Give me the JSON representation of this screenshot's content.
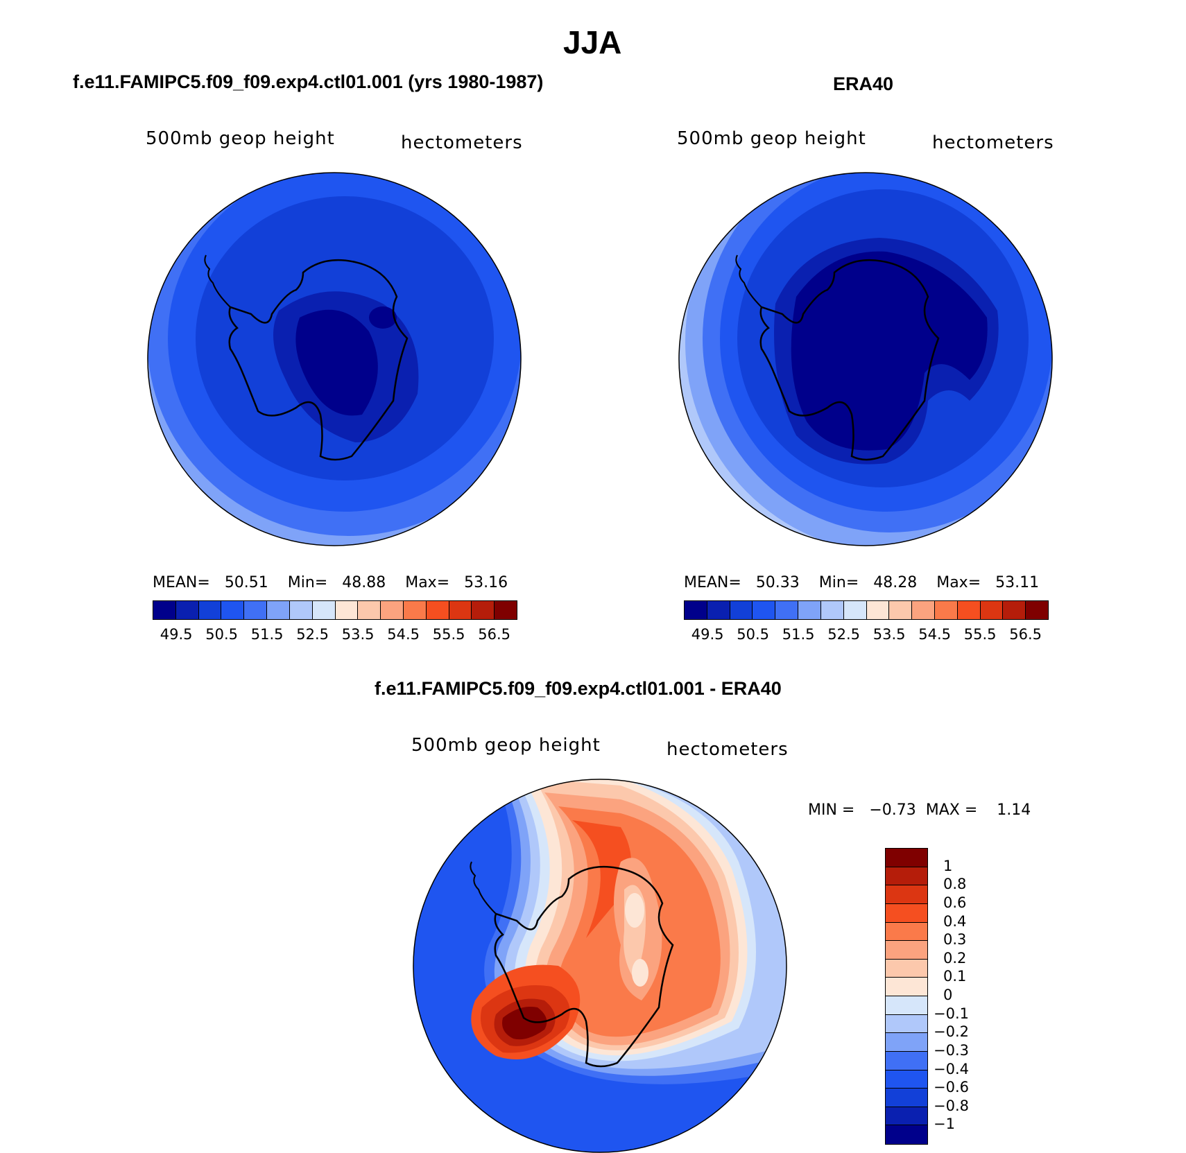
{
  "page": {
    "title": "JJA"
  },
  "panels": [
    {
      "title": "f.e11.FAMIPC5.f09_f09.exp4.ctl01.001 (yrs 1980-1987)",
      "variable_label": "500mb geop height",
      "units_label": "hectometers",
      "stats": {
        "mean_label": "MEAN=",
        "mean": "50.51",
        "min_label": "Min=",
        "min": "48.88",
        "max_label": "Max=",
        "max": "53.16"
      }
    },
    {
      "title": "ERA40",
      "variable_label": "500mb geop height",
      "units_label": "hectometers",
      "stats": {
        "mean_label": "MEAN=",
        "mean": "50.33",
        "min_label": "Min=",
        "min": "48.28",
        "max_label": "Max=",
        "max": "53.11"
      }
    },
    {
      "title": "f.e11.FAMIPC5.f09_f09.exp4.ctl01.001 - ERA40",
      "variable_label": "500mb geop height",
      "units_label": "hectometers",
      "stats": {
        "min_label": "MIN =",
        "min": "−0.73",
        "max_label": "MAX =",
        "max": "1.14"
      }
    }
  ],
  "colorbar_absolute": {
    "colors": [
      "#00008b",
      "#0a20b0",
      "#1240d8",
      "#1f55f0",
      "#4070f5",
      "#7fa3f8",
      "#b0c8fa",
      "#d6e6fa",
      "#fde6d6",
      "#fcc8ac",
      "#fba37f",
      "#fa7a4a",
      "#f54f20",
      "#dc3612",
      "#b51d0a",
      "#7f0000"
    ],
    "ticks": [
      "49.5",
      "50.5",
      "51.5",
      "52.5",
      "53.5",
      "54.5",
      "55.5",
      "56.5"
    ]
  },
  "colorbar_difference": {
    "colors": [
      "#7f0000",
      "#b51d0a",
      "#dc3612",
      "#f54f20",
      "#fa7a4a",
      "#fba37f",
      "#fcc8ac",
      "#fde6d6",
      "#d6e6fa",
      "#b0c8fa",
      "#7fa3f8",
      "#4070f5",
      "#1f55f0",
      "#1240d8",
      "#0a20b0",
      "#00008b"
    ],
    "ticks": [
      "1",
      "0.8",
      "0.6",
      "0.4",
      "0.3",
      "0.2",
      "0.1",
      "0",
      "−0.1",
      "−0.2",
      "−0.3",
      "−0.4",
      "−0.6",
      "−0.8",
      "−1"
    ]
  }
}
